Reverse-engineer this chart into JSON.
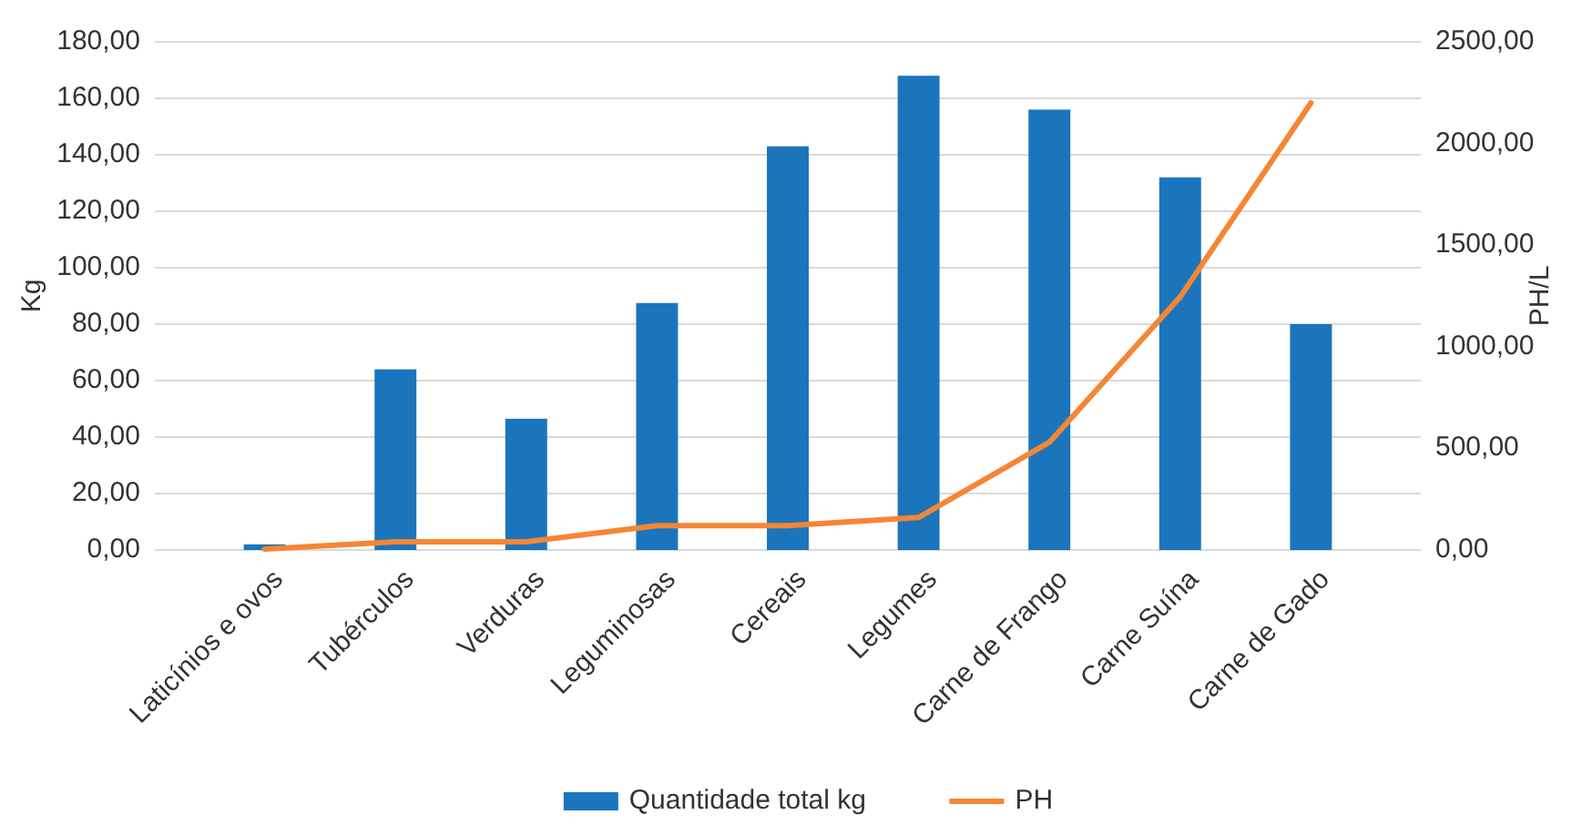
{
  "chart_data": {
    "type": "bar",
    "ylabel": "Kg",
    "y2label": "PH/L",
    "categories": [
      "Laticínios e ovos",
      "Tubérculos",
      "Verduras",
      "Leguminosas",
      "Cereais",
      "Legumes",
      "Carne de Frango",
      "Carne Suína",
      "Carne de Gado"
    ],
    "series": [
      {
        "name": "Quantidade total kg",
        "color": "#1b75bc",
        "values": [
          2,
          64,
          46.5,
          87.5,
          143,
          168,
          156,
          132,
          80
        ]
      },
      {
        "name": "PH",
        "type": "line",
        "axis": "y2",
        "color": "#f58634",
        "values": [
          5,
          40,
          40,
          120,
          120,
          160,
          530,
          1245,
          2200
        ]
      }
    ],
    "ylim": [
      0,
      180
    ],
    "yticks": [
      {
        "value": 0,
        "label": "0,00"
      },
      {
        "value": 20,
        "label": "20,00"
      },
      {
        "value": 40,
        "label": "40,00"
      },
      {
        "value": 60,
        "label": "60,00"
      },
      {
        "value": 80,
        "label": "80,00"
      },
      {
        "value": 100,
        "label": "100,00"
      },
      {
        "value": 120,
        "label": "120,00"
      },
      {
        "value": 140,
        "label": "140,00"
      },
      {
        "value": 160,
        "label": "160,00"
      },
      {
        "value": 180,
        "label": "180,00"
      }
    ],
    "y2lim": [
      0,
      2500
    ],
    "y2ticks": [
      {
        "value": 0,
        "label": "0,00"
      },
      {
        "value": 500,
        "label": "500,00"
      },
      {
        "value": 1000,
        "label": "1000,00"
      },
      {
        "value": 1500,
        "label": "1500,00"
      },
      {
        "value": 2000,
        "label": "2000,00"
      },
      {
        "value": 2500,
        "label": "2500,00"
      }
    ],
    "grid": "y",
    "legend": "bottom"
  }
}
